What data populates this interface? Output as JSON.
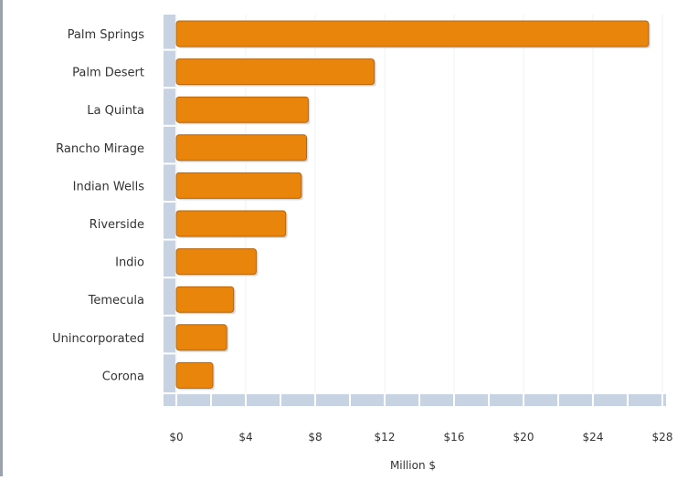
{
  "colors": {
    "bar": "#e8850a",
    "bar_edge": "#b9650a",
    "axis_band": "#c7d3e3",
    "grid": "#eef1f5",
    "label": "#333333"
  },
  "chart_data": {
    "type": "bar",
    "orientation": "horizontal",
    "categories": [
      "Palm Springs",
      "Palm Desert",
      "La Quinta",
      "Rancho Mirage",
      "Indian Wells",
      "Riverside",
      "Indio",
      "Temecula",
      "Unincorporated",
      "Corona"
    ],
    "values": [
      27.2,
      11.4,
      7.6,
      7.5,
      7.2,
      6.3,
      4.6,
      3.3,
      2.9,
      2.1
    ],
    "tick_values": [
      0,
      4,
      8,
      12,
      16,
      20,
      24,
      28
    ],
    "tick_labels": [
      "$0",
      "$4",
      "$8",
      "$12",
      "$16",
      "$20",
      "$24",
      "$28"
    ],
    "xlabel": "Million $",
    "xlim": [
      0,
      28
    ],
    "grid": true
  }
}
